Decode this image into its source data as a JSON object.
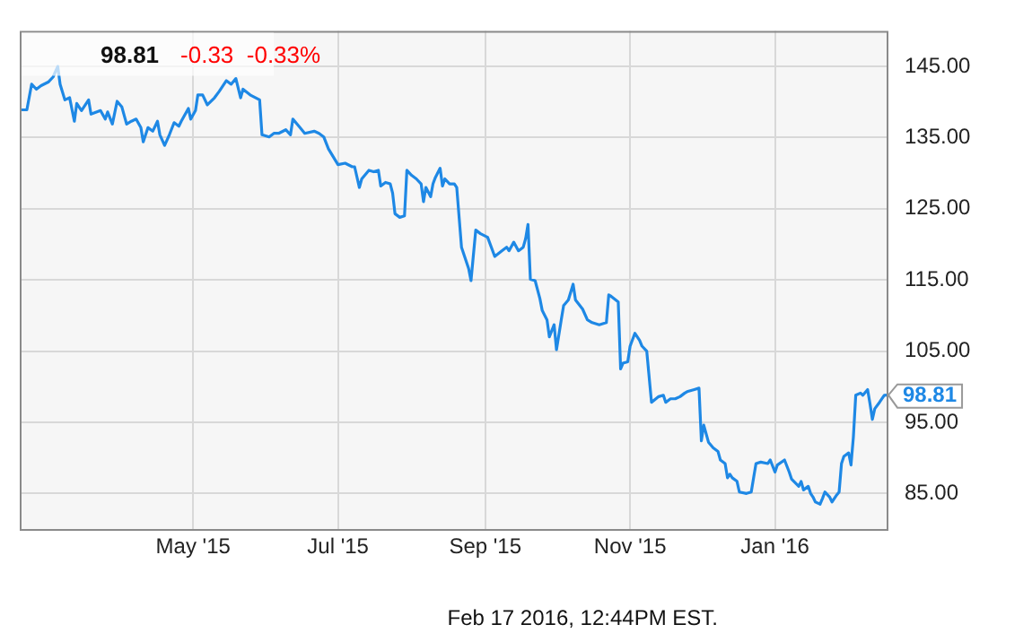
{
  "chart_data": {
    "type": "line",
    "title": "98.81",
    "subtitle": "-0.33  -0.33%",
    "annotations": [
      "Feb 17 2016, 12:44PM EST.",
      {
        "text": "98.81",
        "x": "2016-02-17",
        "y": 98.81
      }
    ],
    "grid": true,
    "legend": false,
    "marker": "none",
    "line_style": "solid",
    "xlim": [
      "2015-02-17",
      "2016-02-17"
    ],
    "xticks": [
      {
        "value": "2015-05-01",
        "label": "May '15"
      },
      {
        "value": "2015-07-01",
        "label": "Jul '15"
      },
      {
        "value": "2015-09-01",
        "label": "Sep '15"
      },
      {
        "value": "2015-11-01",
        "label": "Nov '15"
      },
      {
        "value": "2016-01-01",
        "label": "Jan '16"
      }
    ],
    "ylim": [
      80,
      150
    ],
    "yticks": [
      {
        "value": 85,
        "label": "85.00"
      },
      {
        "value": 95,
        "label": "95.00"
      },
      {
        "value": 105,
        "label": "105.00"
      },
      {
        "value": 115,
        "label": "115.00"
      },
      {
        "value": 125,
        "label": "125.00"
      },
      {
        "value": 135,
        "label": "135.00"
      },
      {
        "value": 145,
        "label": "145.00"
      }
    ],
    "x": [
      "2015-02-17",
      "2015-02-20",
      "2015-02-22",
      "2015-02-24",
      "2015-02-26",
      "2015-03-01",
      "2015-03-03",
      "2015-03-05",
      "2015-03-06",
      "2015-03-08",
      "2015-03-10",
      "2015-03-12",
      "2015-03-13",
      "2015-03-15",
      "2015-03-18",
      "2015-03-19",
      "2015-03-23",
      "2015-03-25",
      "2015-03-26",
      "2015-03-28",
      "2015-03-30",
      "2015-04-01",
      "2015-04-03",
      "2015-04-05",
      "2015-04-07",
      "2015-04-09",
      "2015-04-10",
      "2015-04-12",
      "2015-04-14",
      "2015-04-16",
      "2015-04-17",
      "2015-04-19",
      "2015-04-21",
      "2015-04-23",
      "2015-04-25",
      "2015-04-26",
      "2015-04-29",
      "2015-04-30",
      "2015-05-02",
      "2015-05-03",
      "2015-05-05",
      "2015-05-07",
      "2015-05-10",
      "2015-05-12",
      "2015-05-15",
      "2015-05-17",
      "2015-05-19",
      "2015-05-21",
      "2015-05-22",
      "2015-05-25",
      "2015-05-29",
      "2015-05-30",
      "2015-06-02",
      "2015-06-04",
      "2015-06-06",
      "2015-06-09",
      "2015-06-11",
      "2015-06-12",
      "2015-06-15",
      "2015-06-17",
      "2015-06-21",
      "2015-06-23",
      "2015-06-25",
      "2015-06-27",
      "2015-07-01",
      "2015-07-04",
      "2015-07-07",
      "2015-07-08",
      "2015-07-10",
      "2015-07-11",
      "2015-07-14",
      "2015-07-16",
      "2015-07-18",
      "2015-07-19",
      "2015-07-21",
      "2015-07-23",
      "2015-07-24",
      "2015-07-25",
      "2015-07-27",
      "2015-07-29",
      "2015-07-30",
      "2015-08-01",
      "2015-08-03",
      "2015-08-05",
      "2015-08-06",
      "2015-08-07",
      "2015-08-09",
      "2015-08-10",
      "2015-08-11",
      "2015-08-13",
      "2015-08-14",
      "2015-08-15",
      "2015-08-17",
      "2015-08-19",
      "2015-08-20",
      "2015-08-22",
      "2015-08-25",
      "2015-08-26",
      "2015-08-28",
      "2015-08-30",
      "2015-09-02",
      "2015-09-05",
      "2015-09-08",
      "2015-09-10",
      "2015-09-11",
      "2015-09-13",
      "2015-09-15",
      "2015-09-17",
      "2015-09-18",
      "2015-09-19",
      "2015-09-20",
      "2015-09-22",
      "2015-09-24",
      "2015-09-25",
      "2015-09-27",
      "2015-09-28",
      "2015-09-30",
      "2015-10-01",
      "2015-10-03",
      "2015-10-04",
      "2015-10-06",
      "2015-10-08",
      "2015-10-09",
      "2015-10-12",
      "2015-10-14",
      "2015-10-16",
      "2015-10-19",
      "2015-10-22",
      "2015-10-23",
      "2015-10-24",
      "2015-10-27",
      "2015-10-28",
      "2015-10-29",
      "2015-10-31",
      "2015-11-01",
      "2015-11-03",
      "2015-11-05",
      "2015-11-06",
      "2015-11-08",
      "2015-11-10",
      "2015-11-13",
      "2015-11-15",
      "2015-11-16",
      "2015-11-18",
      "2015-11-20",
      "2015-11-22",
      "2015-11-24",
      "2015-11-25",
      "2015-11-28",
      "2015-11-30",
      "2015-12-01",
      "2015-12-02",
      "2015-12-04",
      "2015-12-06",
      "2015-12-08",
      "2015-12-09",
      "2015-12-11",
      "2015-12-12",
      "2015-12-13",
      "2015-12-14",
      "2015-12-16",
      "2015-12-17",
      "2015-12-20",
      "2015-12-22",
      "2015-12-23",
      "2015-12-24",
      "2015-12-26",
      "2015-12-29",
      "2015-12-30",
      "2016-01-01",
      "2016-01-02",
      "2016-01-05",
      "2016-01-07",
      "2016-01-08",
      "2016-01-11",
      "2016-01-12",
      "2016-01-13",
      "2016-01-15",
      "2016-01-16",
      "2016-01-17",
      "2016-01-18",
      "2016-01-20",
      "2016-01-21",
      "2016-01-22",
      "2016-01-24",
      "2016-01-25",
      "2016-01-27",
      "2016-01-28",
      "2016-01-29",
      "2016-01-30",
      "2016-02-01",
      "2016-02-02",
      "2016-02-03",
      "2016-02-04",
      "2016-02-06",
      "2016-02-07",
      "2016-02-09",
      "2016-02-10",
      "2016-02-11",
      "2016-02-12",
      "2016-02-14",
      "2016-02-16",
      "2016-02-17"
    ],
    "series": [
      {
        "color": "#1e88e5",
        "values": [
          138.9,
          138.9,
          142.5,
          141.8,
          142.3,
          142.8,
          143.5,
          145.0,
          142.5,
          140.3,
          140.6,
          137.3,
          139.8,
          138.8,
          140.3,
          138.3,
          138.8,
          137.6,
          138.6,
          136.9,
          140.1,
          139.3,
          136.9,
          137.3,
          137.6,
          136.4,
          134.4,
          136.4,
          135.9,
          137.3,
          135.4,
          133.9,
          135.4,
          137.1,
          136.6,
          137.3,
          139.1,
          137.6,
          138.8,
          141.0,
          141.0,
          139.6,
          140.6,
          141.5,
          143.0,
          142.5,
          143.3,
          140.6,
          141.8,
          141.0,
          140.3,
          135.4,
          135.1,
          135.6,
          135.6,
          136.1,
          135.4,
          137.6,
          136.4,
          135.6,
          135.9,
          135.6,
          135.1,
          133.4,
          131.2,
          131.4,
          130.9,
          130.9,
          128.0,
          129.2,
          130.4,
          130.2,
          130.4,
          128.2,
          128.7,
          128.5,
          127.2,
          124.3,
          123.8,
          124.0,
          130.4,
          129.7,
          129.2,
          128.5,
          126.0,
          128.0,
          126.7,
          128.5,
          129.4,
          130.7,
          128.2,
          129.2,
          128.5,
          128.5,
          128.0,
          119.6,
          116.6,
          114.9,
          122.0,
          121.5,
          121.0,
          118.3,
          119.1,
          119.6,
          119.1,
          120.3,
          119.1,
          119.6,
          120.8,
          122.8,
          115.1,
          114.9,
          112.4,
          110.7,
          109.4,
          107.0,
          108.7,
          105.2,
          109.4,
          111.4,
          112.2,
          114.4,
          112.2,
          110.9,
          109.4,
          109.0,
          108.7,
          109.0,
          112.9,
          112.7,
          111.9,
          102.5,
          103.3,
          103.5,
          105.7,
          107.5,
          106.5,
          105.7,
          105.0,
          97.8,
          98.6,
          98.8,
          97.8,
          98.3,
          98.3,
          98.6,
          99.1,
          99.3,
          99.6,
          99.8,
          92.4,
          94.6,
          92.2,
          91.4,
          90.9,
          89.7,
          89.2,
          87.2,
          87.7,
          87.2,
          86.7,
          85.2,
          85.0,
          85.2,
          87.2,
          89.2,
          89.4,
          89.2,
          89.7,
          88.0,
          89.0,
          89.7,
          88.0,
          87.0,
          86.0,
          86.7,
          85.5,
          86.0,
          85.0,
          84.5,
          83.8,
          83.5,
          84.3,
          85.2,
          84.5,
          83.8,
          84.8,
          85.2,
          89.2,
          90.2,
          90.7,
          89.0,
          92.9,
          98.8,
          99.1,
          98.8,
          99.6,
          97.6,
          95.4,
          96.9,
          97.8,
          98.8,
          98.81
        ]
      }
    ]
  }
}
